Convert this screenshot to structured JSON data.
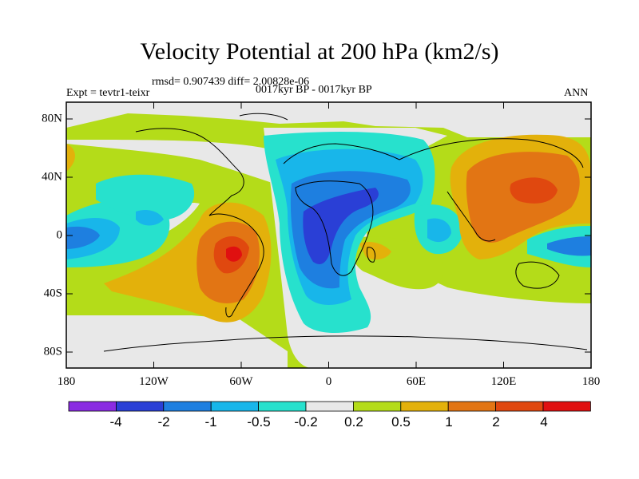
{
  "title": "Velocity Potential at 200 hPa (km2/s)",
  "stats": "rmsd= 0.907439 diff= 2.00828e-06",
  "expt": "Expt = tevtr1-teixr",
  "period": "0017kyr BP - 0017kyr BP",
  "season": "ANN",
  "axes": {
    "x_ticks": [
      "180",
      "120W",
      "60W",
      "0",
      "60E",
      "120E",
      "180"
    ],
    "y_ticks": [
      "80N",
      "40N",
      "0",
      "40S",
      "80S"
    ]
  },
  "colorbar": {
    "labels": [
      "-4",
      "-2",
      "-1",
      "-0.5",
      "-0.2",
      "0.2",
      "0.5",
      "1",
      "2",
      "4"
    ],
    "colors": [
      "#8a2be2",
      "#2a3fd6",
      "#1e7fe0",
      "#18b6ea",
      "#27e1cd",
      "#e8e8e8",
      "#b4dc19",
      "#e3b10b",
      "#e27514",
      "#e0480f",
      "#e01010"
    ]
  }
}
